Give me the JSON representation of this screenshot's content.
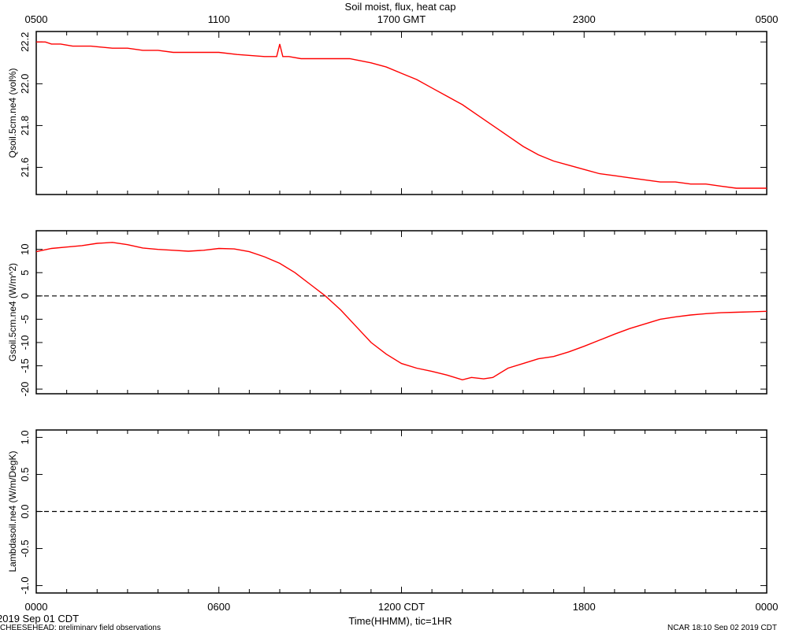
{
  "figure": {
    "title": "Soil moist, flux, heat cap",
    "top_axis_ticks": [
      "0500",
      "1100",
      "1700 GMT",
      "2300",
      "0500"
    ],
    "bottom_axis_ticks": [
      "0000",
      "0600",
      "1200 CDT",
      "1800",
      "0000"
    ],
    "xlabel": "Time(HHMM), tic=1HR",
    "date_label": "2019 Sep 01 CDT",
    "footer_left": "CHEESEHEAD: preliminary field observations",
    "footer_right": "NCAR 18:10 Sep 02 2019 CDT",
    "line_color": "#ff0000"
  },
  "chart_data": [
    {
      "type": "line",
      "ylabel": "Qsoil.5cm.ne4 (vol%)",
      "ylim": [
        21.47,
        22.25
      ],
      "yticks": [
        21.6,
        21.8,
        22.0,
        22.2
      ],
      "ytick_labels": [
        "21.6",
        "21.8",
        "22.0",
        "22.2"
      ],
      "xlim": [
        0,
        24
      ],
      "zero_line": false,
      "x": [
        0,
        0.3,
        0.5,
        0.8,
        1.2,
        1.8,
        2.5,
        3.0,
        3.5,
        4.0,
        4.5,
        5.0,
        6.0,
        6.6,
        7.5,
        7.9,
        8.0,
        8.1,
        8.3,
        8.7,
        10.3,
        11.0,
        11.5,
        12.0,
        12.5,
        13.0,
        13.5,
        14.0,
        14.5,
        15.0,
        15.5,
        16.0,
        16.5,
        17.0,
        17.5,
        18.0,
        18.5,
        19.0,
        19.5,
        20.0,
        20.5,
        21.0,
        21.5,
        22.0,
        22.5,
        23.0,
        24.0
      ],
      "y": [
        22.2,
        22.2,
        22.19,
        22.19,
        22.18,
        22.18,
        22.17,
        22.17,
        22.16,
        22.16,
        22.15,
        22.15,
        22.15,
        22.14,
        22.13,
        22.13,
        22.19,
        22.13,
        22.13,
        22.12,
        22.12,
        22.1,
        22.08,
        22.05,
        22.02,
        21.98,
        21.94,
        21.9,
        21.85,
        21.8,
        21.75,
        21.7,
        21.66,
        21.63,
        21.61,
        21.59,
        21.57,
        21.56,
        21.55,
        21.54,
        21.53,
        21.53,
        21.52,
        21.52,
        21.51,
        21.5,
        21.5
      ]
    },
    {
      "type": "line",
      "ylabel": "Gsoil.5cm.ne4 (W/m^2)",
      "ylim": [
        -21,
        14
      ],
      "yticks": [
        -20,
        -15,
        -10,
        -5,
        0,
        5,
        10
      ],
      "ytick_labels": [
        "-20",
        "-15",
        "-10",
        "-5",
        "0",
        "5",
        "10"
      ],
      "xlim": [
        0,
        24
      ],
      "zero_line": true,
      "x": [
        0,
        0.5,
        1.0,
        1.5,
        2.0,
        2.5,
        3.0,
        3.5,
        4.0,
        4.5,
        5.0,
        5.5,
        6.0,
        6.5,
        7.0,
        7.5,
        8.0,
        8.5,
        9.0,
        9.5,
        10.0,
        10.5,
        11.0,
        11.5,
        12.0,
        12.5,
        13.0,
        13.5,
        14.0,
        14.3,
        14.7,
        15.0,
        15.5,
        16.0,
        16.5,
        17.0,
        17.5,
        18.0,
        18.5,
        19.0,
        19.5,
        20.0,
        20.5,
        21.0,
        21.5,
        22.0,
        22.5,
        23.0,
        23.5,
        24.0
      ],
      "y": [
        9.5,
        10.2,
        10.5,
        10.8,
        11.3,
        11.5,
        11.0,
        10.3,
        10.0,
        9.8,
        9.6,
        9.8,
        10.2,
        10.1,
        9.5,
        8.4,
        7.0,
        5.0,
        2.5,
        0.0,
        -3.0,
        -6.5,
        -10.0,
        -12.5,
        -14.5,
        -15.5,
        -16.2,
        -17.0,
        -18.0,
        -17.5,
        -17.8,
        -17.5,
        -15.5,
        -14.5,
        -13.5,
        -13.0,
        -12.0,
        -10.8,
        -9.5,
        -8.2,
        -7.0,
        -6.0,
        -5.0,
        -4.5,
        -4.1,
        -3.8,
        -3.6,
        -3.5,
        -3.4,
        -3.3
      ]
    },
    {
      "type": "line",
      "ylabel": "Lambdasoil.ne4 (W/m/DegK)",
      "ylim": [
        -1.1,
        1.1
      ],
      "yticks": [
        -1.0,
        -0.5,
        0.0,
        0.5,
        1.0
      ],
      "ytick_labels": [
        "-1.0",
        "-0.5",
        "0.0",
        "0.5",
        "1.0"
      ],
      "xlim": [
        0,
        24
      ],
      "zero_line": true,
      "x": [],
      "y": []
    }
  ]
}
